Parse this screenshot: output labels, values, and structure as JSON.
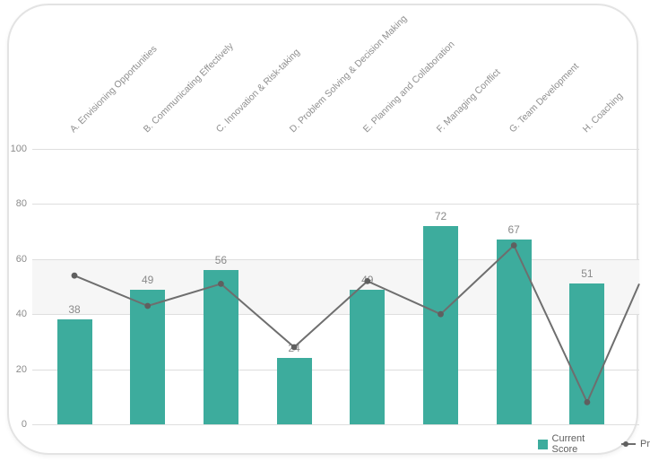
{
  "chart_data": {
    "type": "bar+line",
    "title": "",
    "categories": [
      "A. Envisioning Opportunities",
      "B. Communicating Effectively",
      "C. Innovation & Risk-taking",
      "D. Problem Solving & Decision Making",
      "E. Planning and Collaboration",
      "F. Managing Conflict",
      "G. Team Development",
      "H. Coaching"
    ],
    "series": [
      {
        "name": "Current Score",
        "type": "bar",
        "color": "#3dac9d",
        "values": [
          38,
          49,
          56,
          24,
          49,
          72,
          67,
          51
        ],
        "data_labels": true
      },
      {
        "name": "Pr",
        "type": "line",
        "color": "#6e6e6e",
        "marker": "circle",
        "marker_color": "#5f5f5f",
        "values": [
          54,
          43,
          51,
          28,
          52,
          40,
          65,
          8
        ],
        "right_edge_exit_value": 51
      }
    ],
    "ylim": [
      0,
      100
    ],
    "yticks": [
      0,
      20,
      40,
      60,
      80,
      100
    ],
    "reference_band": {
      "from": 40,
      "to": 60,
      "color": "#f6f6f6"
    },
    "grid": "horizontal-solid",
    "grid_color": "#dedede",
    "axis_text_color": "#8c8c8c",
    "legend_position": "bottom-right"
  },
  "card": {
    "background": "#ffffff",
    "border_color": "#e3e3e3"
  }
}
